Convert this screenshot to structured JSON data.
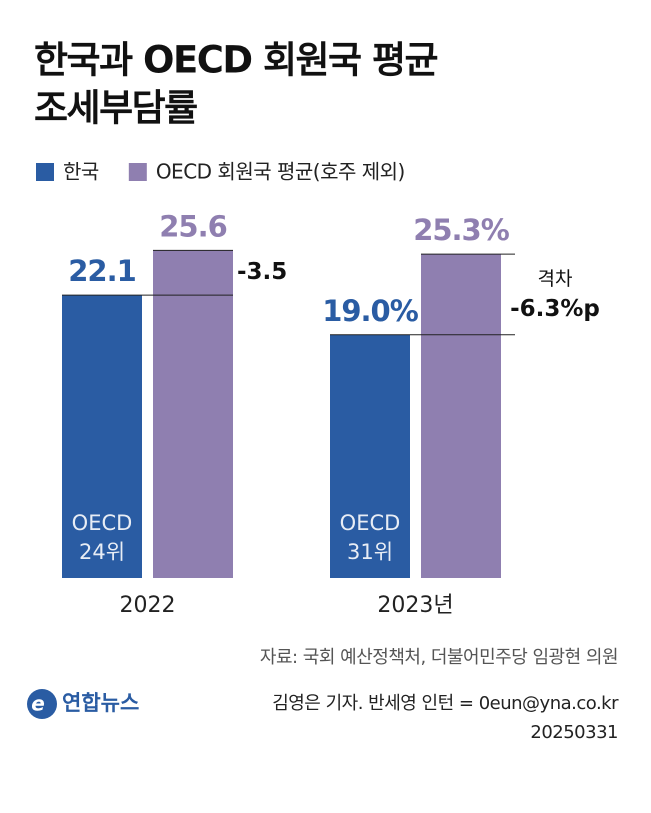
{
  "chart_data": {
    "type": "bar",
    "title_lines": [
      "한국과 OECD 회원국 평균",
      "조세부담률"
    ],
    "categories": [
      "2022",
      "2023년"
    ],
    "series": [
      {
        "name": "한국",
        "color": "#2a5ca3",
        "values": [
          22.1,
          19.0
        ],
        "value_labels": [
          "22.1",
          "19.0%"
        ]
      },
      {
        "name": "OECD 회원국 평균(호주 제외)",
        "color": "#8f7fb0",
        "values": [
          25.6,
          25.3
        ],
        "value_labels": [
          "25.6",
          "25.3%"
        ]
      }
    ],
    "bar_texts": [
      [
        "OECD",
        "24위"
      ],
      [
        "OECD",
        "31위"
      ]
    ],
    "gap_labels": [
      [
        "-3.5"
      ],
      [
        "격차",
        "-6.3%p"
      ]
    ],
    "source": "자료: 국회 예산정책처, 더불어민주당 임광현 의원",
    "logo": "연합뉴스",
    "credit": "김영은 기자. 반세영 인턴 = 0eun@yna.co.kr",
    "date": "20250331"
  }
}
